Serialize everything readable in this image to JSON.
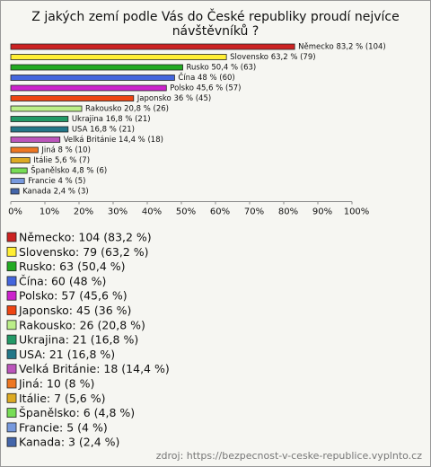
{
  "chart_data": {
    "type": "bar",
    "orientation": "horizontal",
    "title": [
      "Z jakých zemí podle Vás do České republiky proudí nejvíce",
      "návštěvníků ?"
    ],
    "categories": [
      "Německo",
      "Slovensko",
      "Rusko",
      "Čína",
      "Polsko",
      "Japonsko",
      "Rakousko",
      "Ukrajina",
      "USA",
      "Velká Británie",
      "Jiná",
      "Itálie",
      "Španělsko",
      "Francie",
      "Kanada"
    ],
    "values": [
      83.2,
      63.2,
      50.4,
      48,
      45.6,
      36,
      20.8,
      16.8,
      16.8,
      14.4,
      8,
      5.6,
      4.8,
      4,
      2.4
    ],
    "value_labels": [
      "Německo 83,2 % (104)",
      "Slovensko 63,2 % (79)",
      "Rusko 50,4 % (63)",
      "Čína 48 % (60)",
      "Polsko 45,6 % (57)",
      "Japonsko 36 % (45)",
      "Rakousko 20,8 % (26)",
      "Ukrajina 16,8 % (21)",
      "USA 16,8 % (21)",
      "Velká Británie 14,4 % (18)",
      "Jiná 8 % (10)",
      "Itálie 5,6 % (7)",
      "Španělsko 4,8 % (6)",
      "Francie 4 % (5)",
      "Kanada 2,4 % (3)"
    ],
    "legend_labels": [
      "Německo: 104 (83,2 %)",
      "Slovensko: 79 (63,2 %)",
      "Rusko: 63 (50,4 %)",
      "Čína: 60 (48 %)",
      "Polsko: 57 (45,6 %)",
      "Japonsko: 45 (36 %)",
      "Rakousko: 26 (20,8 %)",
      "Ukrajina: 21 (16,8 %)",
      "USA: 21 (16,8 %)",
      "Velká Británie: 18 (14,4 %)",
      "Jiná: 10 (8 %)",
      "Itálie: 7 (5,6 %)",
      "Španělsko: 6 (4,8 %)",
      "Francie: 5 (4 %)",
      "Kanada: 3 (2,4 %)"
    ],
    "colors": [
      "#cc2222",
      "#ffee33",
      "#22aa22",
      "#4466dd",
      "#cc22cc",
      "#ee4411",
      "#bbee88",
      "#229966",
      "#227788",
      "#bb55bb",
      "#ee7722",
      "#ddaa22",
      "#77dd55",
      "#7799dd",
      "#4466aa"
    ],
    "xlim": [
      0,
      100
    ],
    "xticks": [
      {
        "value": 0,
        "label": "0%"
      },
      {
        "value": 10,
        "label": "10%"
      },
      {
        "value": 20,
        "label": "20%"
      },
      {
        "value": 30,
        "label": "30%"
      },
      {
        "value": 40,
        "label": "40%"
      },
      {
        "value": 50,
        "label": "50%"
      },
      {
        "value": 60,
        "label": "60%"
      },
      {
        "value": 70,
        "label": "70%"
      },
      {
        "value": 80,
        "label": "80%"
      },
      {
        "value": 90,
        "label": "90%"
      },
      {
        "value": 100,
        "label": "100%"
      }
    ],
    "source": "zdroj: https://bezpecnost-v-ceske-republice.vyplnto.cz"
  }
}
